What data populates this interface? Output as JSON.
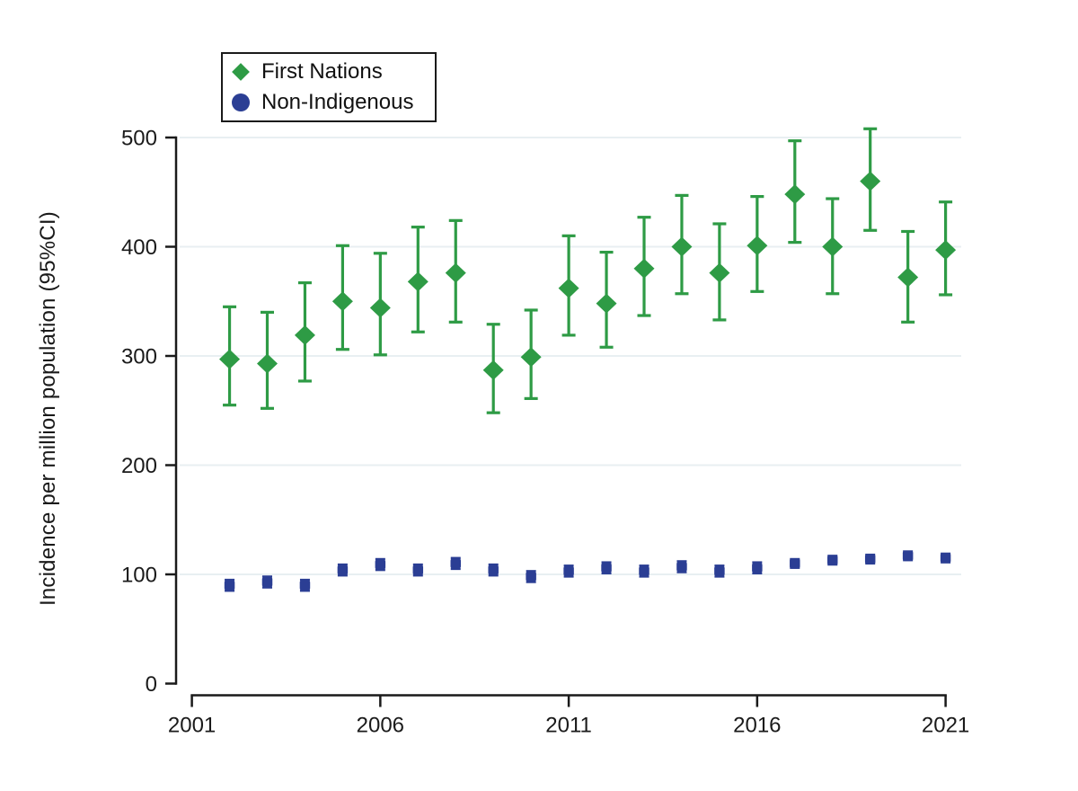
{
  "figure": {
    "background": "#ffffff"
  },
  "chart_data": {
    "type": "scatter",
    "title": "",
    "xlabel": "",
    "ylabel": "Incidence per million population (95%CI)",
    "x": [
      2002,
      2003,
      2004,
      2005,
      2006,
      2007,
      2008,
      2009,
      2010,
      2011,
      2012,
      2013,
      2014,
      2015,
      2016,
      2017,
      2018,
      2019,
      2020,
      2021
    ],
    "x_ticks": [
      2001,
      2006,
      2011,
      2016,
      2021
    ],
    "y_ticks": [
      0,
      100,
      200,
      300,
      400,
      500
    ],
    "xlim": [
      2001,
      2021
    ],
    "ylim": [
      0,
      510
    ],
    "grid": "horizontal-faint",
    "grid_color": "#e8eff2",
    "axis_color": "#1a1a1a",
    "legend_position": "top-left-outside-plot",
    "series": [
      {
        "name": "First Nations",
        "marker": "diamond",
        "legend_marker": "diamond",
        "color": "#2e9b45",
        "values": [
          297,
          293,
          319,
          350,
          344,
          368,
          376,
          287,
          299,
          362,
          348,
          380,
          400,
          376,
          401,
          448,
          400,
          460,
          372,
          397
        ],
        "ci_low": [
          255,
          252,
          277,
          306,
          301,
          322,
          331,
          248,
          261,
          319,
          308,
          337,
          357,
          333,
          359,
          404,
          357,
          415,
          331,
          356
        ],
        "ci_high": [
          345,
          340,
          367,
          401,
          394,
          418,
          424,
          329,
          342,
          410,
          395,
          427,
          447,
          421,
          446,
          497,
          444,
          508,
          414,
          441
        ]
      },
      {
        "name": "Non-Indigenous",
        "marker": "square",
        "legend_marker": "circle",
        "color": "#2b3e94",
        "values": [
          90,
          93,
          90,
          104,
          109,
          104,
          110,
          104,
          98,
          103,
          106,
          103,
          107,
          103,
          106,
          110,
          113,
          114,
          117,
          115
        ],
        "ci_low": [
          85,
          88,
          85,
          99,
          104,
          99,
          105,
          99,
          93,
          98,
          101,
          98,
          102,
          98,
          101,
          106,
          109,
          110,
          113,
          111
        ],
        "ci_high": [
          95,
          98,
          95,
          109,
          114,
          109,
          115,
          109,
          103,
          108,
          111,
          108,
          112,
          108,
          111,
          114,
          117,
          118,
          121,
          119
        ]
      }
    ]
  }
}
